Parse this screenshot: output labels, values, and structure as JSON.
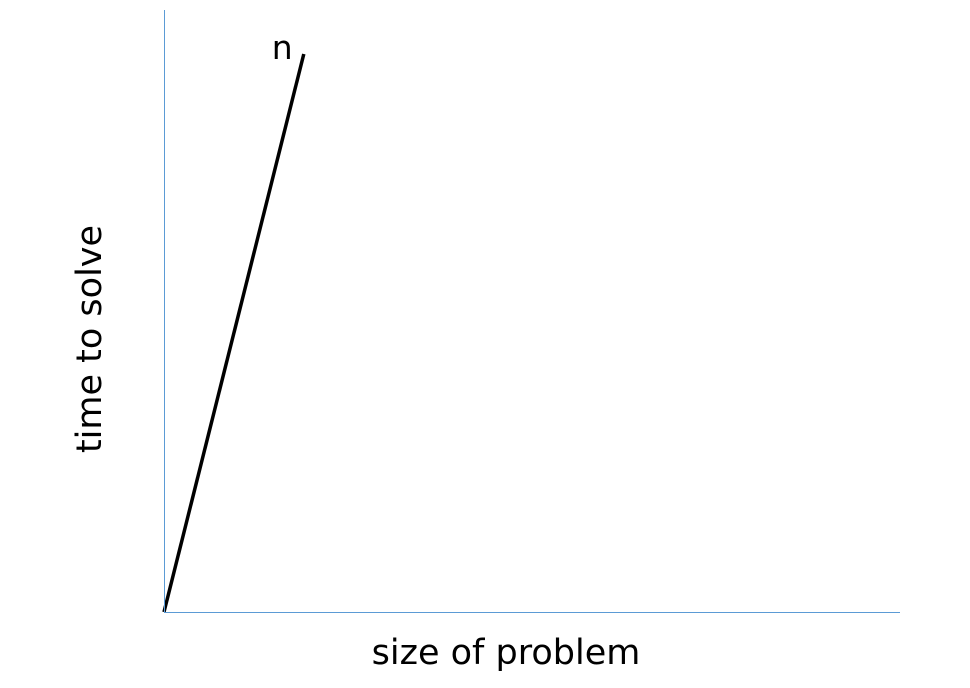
{
  "chart_data": {
    "type": "line",
    "title": "",
    "xlabel": "size of problem",
    "ylabel": "time to solve",
    "xlim": [
      0,
      100
    ],
    "ylim": [
      0,
      100
    ],
    "grid": false,
    "legend": "none",
    "tick_labels": false,
    "series": [
      {
        "name": "n",
        "x": [
          0,
          19
        ],
        "y": [
          0,
          93
        ],
        "color": "#000000"
      }
    ],
    "axis_color": "#5b9bd5"
  }
}
